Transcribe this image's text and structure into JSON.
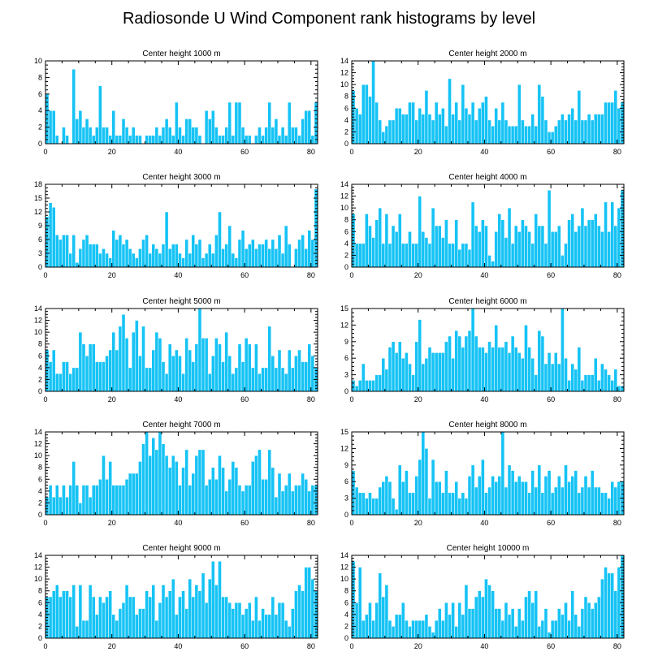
{
  "title": "Radiosonde U Wind Component rank histograms by level",
  "chart_data": [
    {
      "type": "bar",
      "title": "Center height 1000 m",
      "xlim": [
        0,
        82
      ],
      "ylim": [
        0,
        10
      ],
      "xticks": [
        "0",
        "20",
        "40",
        "60",
        "80"
      ],
      "yticks": [
        "0",
        "2",
        "4",
        "6",
        "8",
        "10"
      ],
      "values": [
        6,
        4,
        4,
        1,
        0,
        2,
        1,
        0,
        9,
        3,
        4,
        2,
        3,
        2,
        1,
        2,
        7,
        2,
        2,
        1,
        4,
        1,
        1,
        3,
        2,
        1,
        2,
        1,
        1,
        0,
        1,
        1,
        1,
        2,
        1,
        2,
        3,
        2,
        1,
        5,
        2,
        1,
        3,
        3,
        2,
        2,
        1,
        0,
        4,
        3,
        4,
        2,
        1,
        1,
        2,
        5,
        1,
        5,
        5,
        2,
        1,
        1,
        0,
        1,
        2,
        1,
        2,
        5,
        2,
        3,
        1,
        2,
        1,
        5,
        2,
        2,
        1,
        3,
        4,
        4,
        1,
        5
      ]
    },
    {
      "type": "bar",
      "title": "Center height 2000 m",
      "xlim": [
        0,
        82
      ],
      "ylim": [
        0,
        14
      ],
      "xticks": [
        "0",
        "20",
        "40",
        "60",
        "80"
      ],
      "yticks": [
        "0",
        "2",
        "4",
        "6",
        "8",
        "10",
        "12",
        "14"
      ],
      "values": [
        9,
        6,
        5,
        10,
        10,
        8,
        14,
        7,
        4,
        2,
        3,
        4,
        4,
        6,
        6,
        5,
        5,
        7,
        7,
        4,
        6,
        5,
        9,
        5,
        4,
        7,
        5,
        6,
        3,
        11,
        5,
        7,
        4,
        10,
        6,
        5,
        7,
        4,
        6,
        7,
        8,
        4,
        3,
        6,
        4,
        7,
        4,
        3,
        3,
        3,
        10,
        4,
        3,
        3,
        5,
        3,
        10,
        8,
        4,
        2,
        2,
        3,
        4,
        5,
        4,
        5,
        6,
        4,
        9,
        4,
        4,
        5,
        4,
        5,
        5,
        5,
        7,
        7,
        7,
        9,
        6,
        7
      ]
    },
    {
      "type": "bar",
      "title": "Center height 3000 m",
      "xlim": [
        0,
        82
      ],
      "ylim": [
        0,
        18
      ],
      "xticks": [
        "0",
        "20",
        "40",
        "60",
        "80"
      ],
      "yticks": [
        "0",
        "3",
        "6",
        "9",
        "12",
        "15",
        "18"
      ],
      "values": [
        11,
        14,
        13,
        7,
        6,
        7,
        7,
        3,
        7,
        1,
        4,
        6,
        7,
        5,
        5,
        5,
        3,
        4,
        3,
        2,
        8,
        6,
        7,
        5,
        6,
        4,
        3,
        2,
        4,
        6,
        7,
        3,
        5,
        4,
        3,
        5,
        12,
        4,
        5,
        5,
        3,
        2,
        6,
        3,
        7,
        5,
        6,
        2,
        3,
        5,
        3,
        7,
        12,
        4,
        5,
        9,
        3,
        2,
        6,
        8,
        4,
        5,
        6,
        4,
        5,
        5,
        6,
        4,
        6,
        4,
        7,
        3,
        9,
        5,
        0,
        4,
        6,
        7,
        4,
        8,
        6,
        17
      ]
    },
    {
      "type": "bar",
      "title": "Center height 4000 m",
      "xlim": [
        0,
        82
      ],
      "ylim": [
        0,
        14
      ],
      "xticks": [
        "0",
        "20",
        "40",
        "60",
        "80"
      ],
      "yticks": [
        "0",
        "2",
        "4",
        "6",
        "8",
        "10",
        "12",
        "14"
      ],
      "values": [
        9,
        4,
        4,
        4,
        9,
        7,
        5,
        8,
        10,
        4,
        9,
        4,
        7,
        6,
        9,
        4,
        4,
        6,
        4,
        4,
        12,
        6,
        5,
        4,
        10,
        7,
        7,
        5,
        8,
        4,
        4,
        8,
        3,
        4,
        4,
        3,
        11,
        7,
        6,
        8,
        7,
        2,
        1,
        6,
        9,
        8,
        5,
        10,
        4,
        7,
        6,
        8,
        7,
        6,
        4,
        9,
        7,
        7,
        4,
        13,
        6,
        6,
        7,
        2,
        4,
        8,
        9,
        6,
        7,
        10,
        7,
        8,
        8,
        9,
        7,
        6,
        11,
        6,
        11,
        7,
        10,
        13
      ]
    },
    {
      "type": "bar",
      "title": "Center height 5000 m",
      "xlim": [
        0,
        82
      ],
      "ylim": [
        0,
        14
      ],
      "xticks": [
        "0",
        "20",
        "40",
        "60",
        "80"
      ],
      "yticks": [
        "0",
        "2",
        "4",
        "6",
        "8",
        "10",
        "12",
        "14"
      ],
      "values": [
        7,
        5,
        7,
        3,
        3,
        5,
        5,
        3,
        4,
        4,
        10,
        8,
        6,
        8,
        8,
        5,
        5,
        5,
        6,
        7,
        10,
        7,
        11,
        13,
        9,
        4,
        10,
        12,
        6,
        11,
        4,
        4,
        7,
        10,
        9,
        5,
        3,
        8,
        6,
        7,
        6,
        3,
        9,
        7,
        5,
        8,
        14,
        9,
        9,
        3,
        6,
        9,
        8,
        5,
        10,
        6,
        3,
        4,
        8,
        5,
        9,
        8,
        4,
        8,
        3,
        4,
        4,
        11,
        6,
        4,
        7,
        4,
        3,
        7,
        4,
        6,
        7,
        5,
        5,
        8,
        6,
        4
      ]
    },
    {
      "type": "bar",
      "title": "Center height 6000 m",
      "xlim": [
        0,
        82
      ],
      "ylim": [
        0,
        15
      ],
      "xticks": [
        "0",
        "20",
        "40",
        "60",
        "80"
      ],
      "yticks": [
        "0",
        "3",
        "6",
        "9",
        "12",
        "15"
      ],
      "values": [
        2,
        1,
        2,
        5,
        2,
        2,
        2,
        3,
        3,
        6,
        4,
        8,
        9,
        7,
        9,
        6,
        7,
        5,
        3,
        9,
        13,
        5,
        6,
        8,
        7,
        7,
        7,
        7,
        9,
        10,
        6,
        11,
        10,
        8,
        10,
        11,
        15,
        10,
        8,
        8,
        7,
        9,
        8,
        12,
        8,
        8,
        9,
        7,
        10,
        8,
        7,
        6,
        12,
        8,
        6,
        3,
        11,
        10,
        5,
        7,
        5,
        7,
        5,
        15,
        6,
        2,
        5,
        4,
        8,
        2,
        3,
        3,
        3,
        6,
        2,
        5,
        4,
        3,
        2,
        4,
        1,
        1
      ]
    },
    {
      "type": "bar",
      "title": "Center height 7000 m",
      "xlim": [
        0,
        82
      ],
      "ylim": [
        0,
        14
      ],
      "xticks": [
        "0",
        "20",
        "40",
        "60",
        "80"
      ],
      "yticks": [
        "0",
        "2",
        "4",
        "6",
        "8",
        "10",
        "12",
        "14"
      ],
      "values": [
        3,
        5,
        3,
        5,
        3,
        5,
        3,
        5,
        9,
        5,
        2,
        5,
        5,
        3,
        5,
        5,
        6,
        10,
        6,
        9,
        5,
        5,
        5,
        5,
        6,
        7,
        7,
        7,
        9,
        12,
        14,
        10,
        13,
        11,
        14,
        12,
        10,
        8,
        10,
        9,
        5,
        8,
        11,
        5,
        7,
        10,
        11,
        11,
        5,
        6,
        8,
        6,
        10,
        8,
        4,
        6,
        9,
        8,
        5,
        4,
        5,
        5,
        9,
        10,
        11,
        6,
        6,
        11,
        8,
        3,
        7,
        4,
        5,
        7,
        4,
        5,
        5,
        7,
        6,
        4,
        5,
        5
      ]
    },
    {
      "type": "bar",
      "title": "Center height 8000 m",
      "xlim": [
        0,
        82
      ],
      "ylim": [
        0,
        15
      ],
      "xticks": [
        "0",
        "20",
        "40",
        "60",
        "80"
      ],
      "yticks": [
        "0",
        "3",
        "6",
        "9",
        "12",
        "15"
      ],
      "values": [
        8,
        5,
        4,
        4,
        3,
        4,
        3,
        3,
        5,
        6,
        7,
        6,
        3,
        1,
        9,
        6,
        8,
        4,
        4,
        7,
        10,
        15,
        12,
        3,
        10,
        6,
        6,
        4,
        8,
        4,
        4,
        6,
        3,
        4,
        3,
        7,
        9,
        5,
        7,
        10,
        4,
        5,
        7,
        6,
        7,
        15,
        5,
        9,
        8,
        6,
        7,
        6,
        6,
        4,
        8,
        5,
        9,
        4,
        7,
        8,
        4,
        5,
        7,
        5,
        9,
        6,
        7,
        8,
        4,
        5,
        7,
        5,
        8,
        5,
        5,
        4,
        4,
        3,
        6,
        5,
        6,
        6
      ]
    },
    {
      "type": "bar",
      "title": "Center height 9000 m",
      "xlim": [
        0,
        82
      ],
      "ylim": [
        0,
        14
      ],
      "xticks": [
        "0",
        "20",
        "40",
        "60",
        "80"
      ],
      "yticks": [
        "0",
        "2",
        "4",
        "6",
        "8",
        "10",
        "12",
        "14"
      ],
      "values": [
        7,
        7,
        8,
        9,
        7,
        8,
        8,
        7,
        9,
        2,
        9,
        3,
        3,
        9,
        7,
        4,
        7,
        6,
        7,
        8,
        4,
        3,
        5,
        6,
        9,
        7,
        7,
        4,
        5,
        5,
        8,
        7,
        9,
        3,
        6,
        9,
        7,
        8,
        10,
        4,
        7,
        8,
        5,
        10,
        7,
        9,
        8,
        11,
        6,
        10,
        13,
        9,
        13,
        7,
        7,
        6,
        5,
        6,
        6,
        4,
        5,
        6,
        3,
        7,
        3,
        5,
        4,
        4,
        7,
        4,
        6,
        6,
        3,
        2,
        5,
        8,
        9,
        8,
        12,
        12,
        10,
        8
      ]
    },
    {
      "type": "bar",
      "title": "Center height 10000 m",
      "xlim": [
        0,
        82
      ],
      "ylim": [
        0,
        14
      ],
      "xticks": [
        "0",
        "20",
        "40",
        "60",
        "80"
      ],
      "yticks": [
        "0",
        "2",
        "4",
        "6",
        "8",
        "10",
        "12",
        "14"
      ],
      "values": [
        13,
        6,
        12,
        3,
        4,
        6,
        3,
        6,
        11,
        7,
        9,
        3,
        2,
        4,
        4,
        6,
        3,
        2,
        3,
        3,
        3,
        3,
        4,
        2,
        1,
        3,
        5,
        3,
        6,
        4,
        6,
        2,
        6,
        4,
        9,
        5,
        5,
        7,
        8,
        7,
        10,
        9,
        8,
        5,
        5,
        3,
        6,
        4,
        5,
        2,
        5,
        3,
        7,
        8,
        6,
        8,
        2,
        3,
        5,
        1,
        3,
        3,
        5,
        4,
        6,
        3,
        8,
        4,
        2,
        5,
        7,
        6,
        5,
        6,
        7,
        10,
        12,
        11,
        11,
        8,
        12,
        14
      ]
    }
  ]
}
